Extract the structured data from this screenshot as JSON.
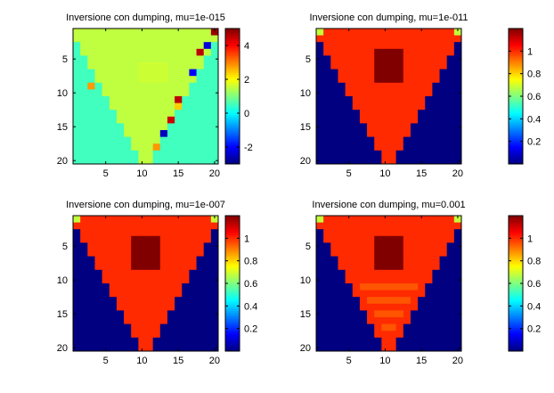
{
  "chart_data": [
    {
      "type": "heatmap",
      "title": "Inversione con dumping, mu=1e-015",
      "grid_size": 20,
      "x_ticks": [
        5,
        10,
        15,
        20
      ],
      "y_ticks": [
        5,
        10,
        15,
        20
      ],
      "colorbar": {
        "range": [
          -3,
          5
        ],
        "ticks": [
          4,
          2,
          0,
          -2
        ],
        "tick_labels": [
          "4",
          "2",
          "0",
          "-2"
        ]
      },
      "values": {
        "background": 0.5,
        "inside": 1.5,
        "center_block": {
          "rows": [
            6,
            8
          ],
          "cols": [
            10,
            13
          ],
          "value": 1.6
        },
        "outliers": [
          {
            "row": 1,
            "col": 20,
            "value": 4.8
          },
          {
            "row": 3,
            "col": 19,
            "value": -2.3
          },
          {
            "row": 4,
            "col": 18,
            "value": 4.5
          },
          {
            "row": 7,
            "col": 17,
            "value": -2.0
          },
          {
            "row": 9,
            "col": 3,
            "value": 2.8
          },
          {
            "row": 11,
            "col": 15,
            "value": 4.5
          },
          {
            "row": 12,
            "col": 15,
            "value": 2.4
          },
          {
            "row": 14,
            "col": 14,
            "value": 4.4
          },
          {
            "row": 16,
            "col": 13,
            "value": -2.5
          },
          {
            "row": 18,
            "col": 12,
            "value": 2.8
          }
        ]
      }
    },
    {
      "type": "heatmap",
      "title": "Inversione con dumping, mu=1e-011",
      "grid_size": 20,
      "x_ticks": [
        5,
        10,
        15,
        20
      ],
      "y_ticks": [
        5,
        10,
        15,
        20
      ],
      "colorbar": {
        "range": [
          0,
          1.2
        ],
        "ticks": [
          1,
          0.8,
          0.6,
          0.4,
          0.2
        ],
        "tick_labels": [
          "1",
          "0.8",
          "0.6",
          "0.4",
          "0.2"
        ]
      },
      "values": {
        "background": 0,
        "inside": 1,
        "center_block": {
          "rows": [
            4,
            8
          ],
          "cols": [
            9,
            12
          ],
          "value": 1.2
        },
        "corner_value": 0.68,
        "row_stripes": []
      }
    },
    {
      "type": "heatmap",
      "title": "Inversione con dumping, mu=1e-007",
      "grid_size": 20,
      "x_ticks": [
        5,
        10,
        15,
        20
      ],
      "y_ticks": [
        5,
        10,
        15,
        20
      ],
      "colorbar": {
        "range": [
          0,
          1.2
        ],
        "ticks": [
          1,
          0.8,
          0.6,
          0.4,
          0.2
        ],
        "tick_labels": [
          "1",
          "0.8",
          "0.6",
          "0.4",
          "0.2"
        ]
      },
      "values": {
        "background": 0,
        "inside": 1,
        "center_block": {
          "rows": [
            4,
            8
          ],
          "cols": [
            9,
            12
          ],
          "value": 1.2
        },
        "corner_value": 0.68,
        "row_stripes": []
      }
    },
    {
      "type": "heatmap",
      "title": "Inversione con dumping, mu=0.001",
      "grid_size": 20,
      "x_ticks": [
        5,
        10,
        15,
        20
      ],
      "y_ticks": [
        5,
        10,
        15,
        20
      ],
      "colorbar": {
        "range": [
          0,
          1.2
        ],
        "ticks": [
          1,
          0.8,
          0.6,
          0.4,
          0.2
        ],
        "tick_labels": [
          "1",
          "0.8",
          "0.6",
          "0.4",
          "0.2"
        ]
      },
      "values": {
        "background": 0,
        "inside": 1,
        "center_block": {
          "rows": [
            4,
            8
          ],
          "cols": [
            9,
            12
          ],
          "value": 1.2
        },
        "corner_value": 0.68,
        "row_stripes": [
          {
            "row": 11,
            "value": 0.95
          },
          {
            "row": 13,
            "value": 0.95
          },
          {
            "row": 15,
            "value": 0.95
          },
          {
            "row": 17,
            "value": 0.95
          },
          {
            "row": 19,
            "value": 0.95
          }
        ]
      }
    }
  ]
}
